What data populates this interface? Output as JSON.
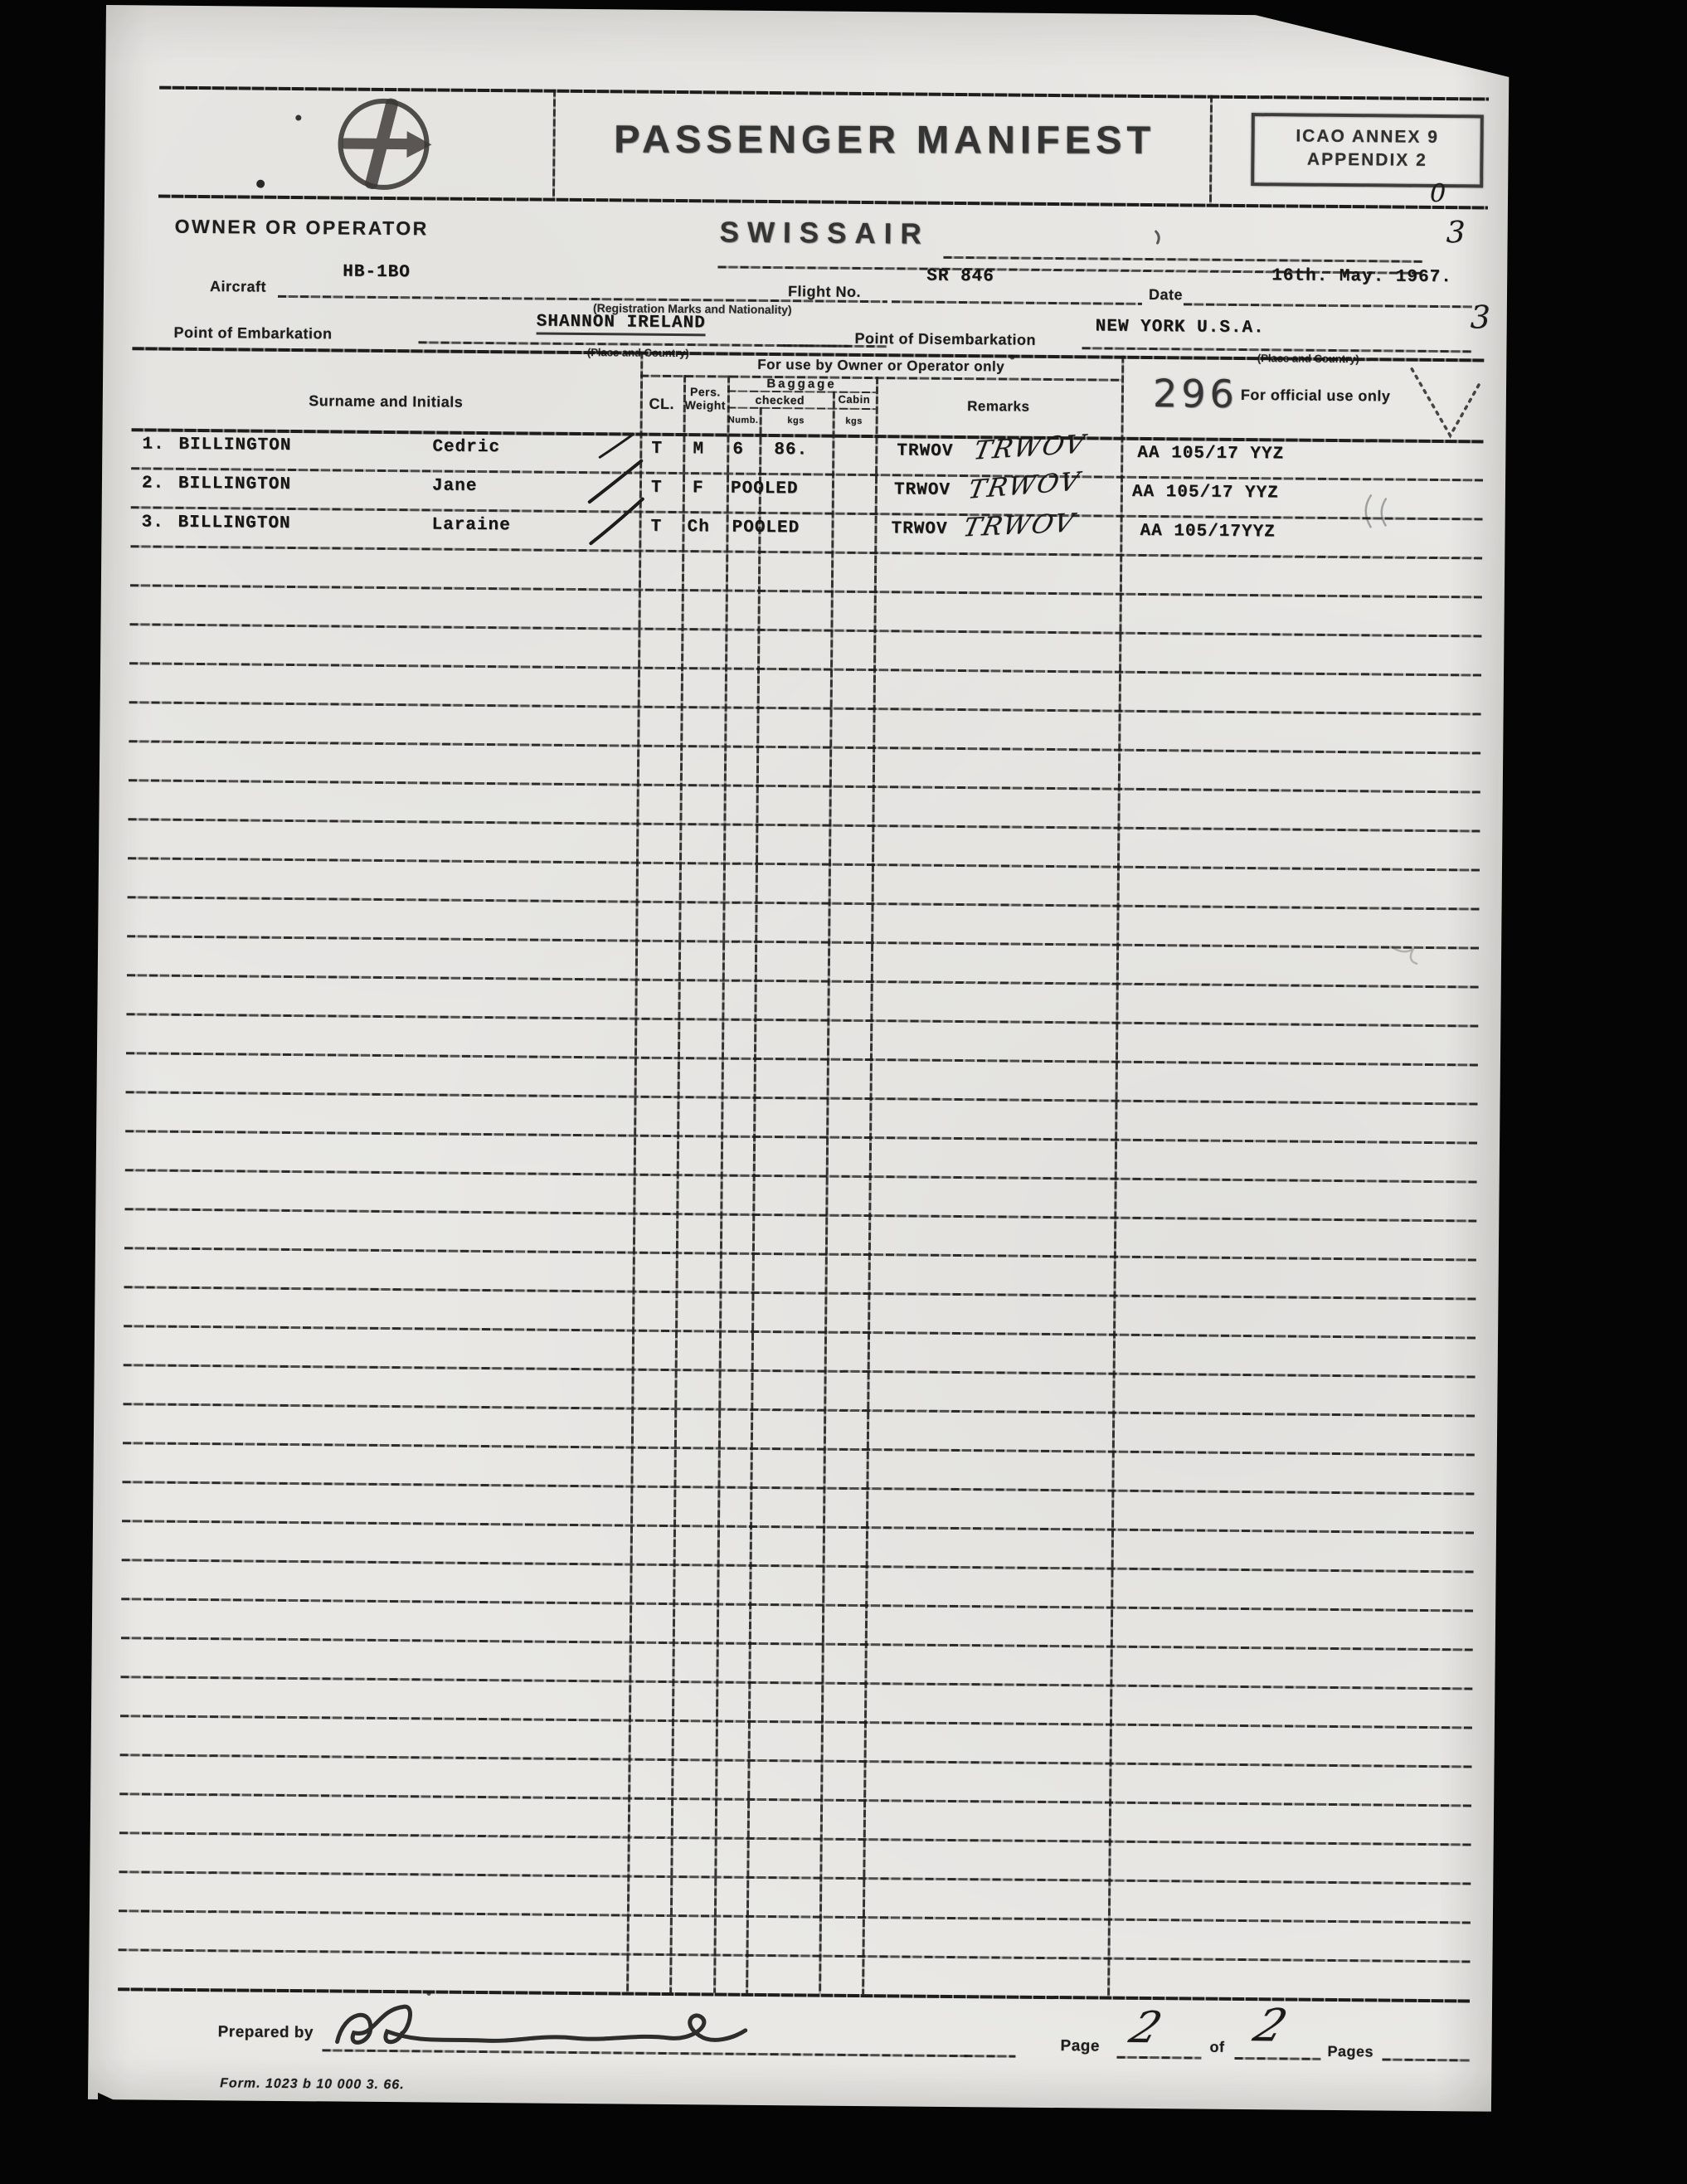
{
  "header": {
    "title_stamp": "PASSENGER MANIFEST",
    "icao_line1": "ICAO ANNEX 9",
    "icao_line2": "APPENDIX 2",
    "hand_zero": "0",
    "hand_three": "3"
  },
  "fields": {
    "owner_label": "OWNER OR OPERATOR",
    "owner_value": "SWISSAIR",
    "aircraft_label": "Aircraft",
    "aircraft_value": "HB-1BO",
    "aircraft_note": "(Registration Marks and Nationality)",
    "flight_label": "Flight No.",
    "flight_value": "SR 846",
    "date_label": "Date",
    "date_value": "16th. May. 1967.",
    "date_hand": "3",
    "embark_label": "Point of Embarkation",
    "embark_value": "SHANNON IRELAND",
    "embark_note": "(Place and Country)",
    "disembark_label": "Point of Disembarkation",
    "disembark_value": "NEW YORK U.S.A.",
    "disembark_note": "(Place and Country)"
  },
  "table": {
    "use_header": "For use by Owner or Operator only",
    "col_surname": "Surname and Initials",
    "col_cl": "CL.",
    "col_weight_line1": "Pers.",
    "col_weight_line2": "Weight",
    "col_baggage": "Baggage",
    "col_checked": "checked",
    "col_cabin": "Cabin",
    "col_numb": "Numb.",
    "col_kgs_checked": "kgs",
    "col_kgs_cabin": "kgs",
    "col_remarks": "Remarks",
    "official_number": "296",
    "official_label": "For official use only",
    "rows": [
      {
        "num": "1.",
        "surname": "BILLINGTON",
        "given": "Cedric",
        "cl": "T",
        "weight": "M",
        "numb": "6",
        "kgs": "86.",
        "pooled": "",
        "remarks": "TRWOV",
        "remarks_hand": "TRWOV",
        "official": "AA 105/17 YYZ"
      },
      {
        "num": "2.",
        "surname": "BILLINGTON",
        "given": "Jane",
        "cl": "T",
        "weight": "F",
        "numb": "",
        "kgs": "",
        "pooled": "POOLED",
        "remarks": "TRWOV",
        "remarks_hand": "TRWOV",
        "official": "AA 105/17  YYZ"
      },
      {
        "num": "3.",
        "surname": "BILLINGTON",
        "given": "Laraine",
        "cl": "T",
        "weight": "Ch",
        "numb": "",
        "kgs": "",
        "pooled": "POOLED",
        "remarks": "TRWOV",
        "remarks_hand": "TRWOV",
        "official": "AA 105/17YYZ"
      }
    ]
  },
  "footer": {
    "prepared_label": "Prepared by",
    "page_label": "Page",
    "page_value": "2",
    "of_label": "of",
    "pages_value": "2",
    "pages_label": "Pages",
    "form_number": "Form. 1023 b   10 000   3. 66."
  },
  "colors": {
    "paper": "#e9e8e5",
    "ink": "#1d1d1d",
    "stamp_ink": "#343434",
    "background": "#050505"
  }
}
